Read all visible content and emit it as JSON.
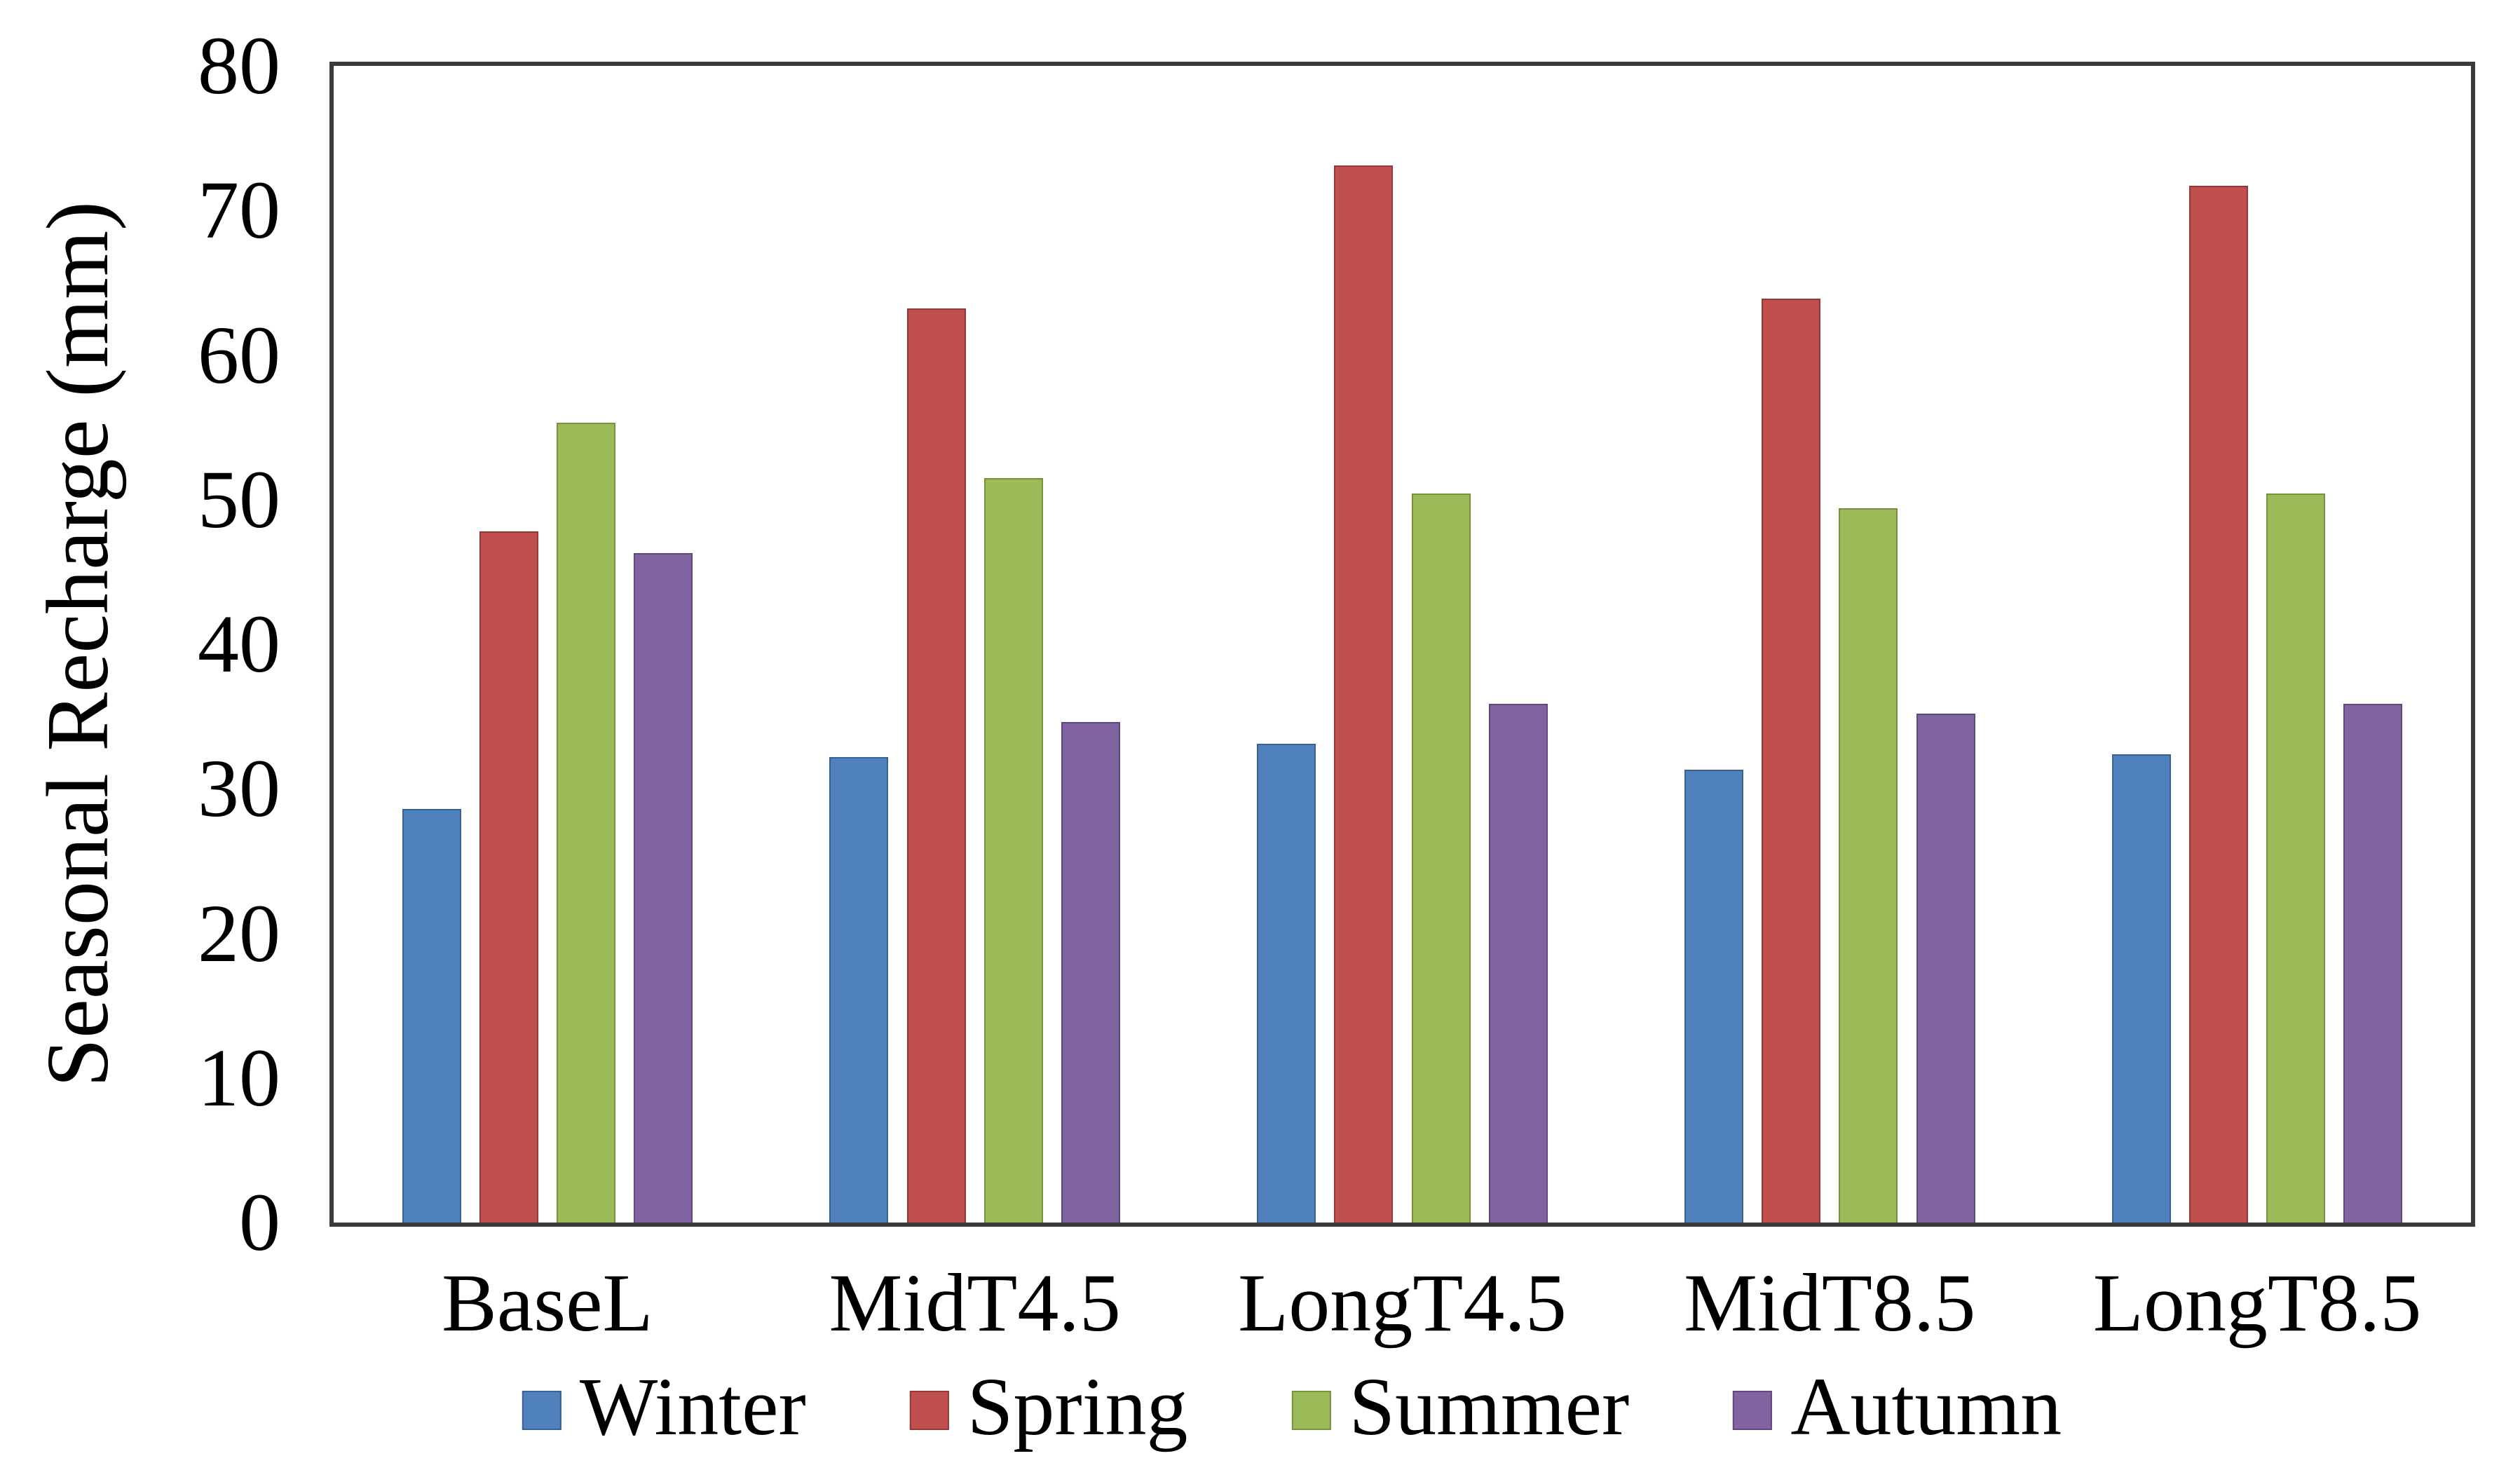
{
  "chart_data": {
    "type": "bar",
    "title": "",
    "ylabel": "Seasonal Recharge (mm)",
    "xlabel": "",
    "ylim": [
      0,
      80
    ],
    "ytick_step": 10,
    "ytick_labels": [
      "0",
      "10",
      "20",
      "30",
      "40",
      "50",
      "60",
      "70",
      "80"
    ],
    "grid": "off",
    "legend_position": "bottom",
    "categories": [
      "BaseL",
      "MidT4.5",
      "LongT4.5",
      "MidT8.5",
      "LongT8.5"
    ],
    "series": [
      {
        "name": "Winter",
        "color": "#4F81BD",
        "edge": "#3A6191",
        "values": [
          28.6,
          32.2,
          33.1,
          31.3,
          32.4
        ]
      },
      {
        "name": "Spring",
        "color": "#C0504D",
        "edge": "#953735",
        "values": [
          47.8,
          63.2,
          73.1,
          63.9,
          71.7
        ]
      },
      {
        "name": "Summer",
        "color": "#9BBB59",
        "edge": "#76923C",
        "values": [
          55.3,
          51.5,
          50.4,
          49.4,
          50.4
        ]
      },
      {
        "name": "Autumn",
        "color": "#8064A2",
        "edge": "#5F497A",
        "values": [
          46.3,
          34.6,
          35.9,
          35.2,
          35.9
        ]
      }
    ],
    "axis_color": "#3b3b3b"
  }
}
